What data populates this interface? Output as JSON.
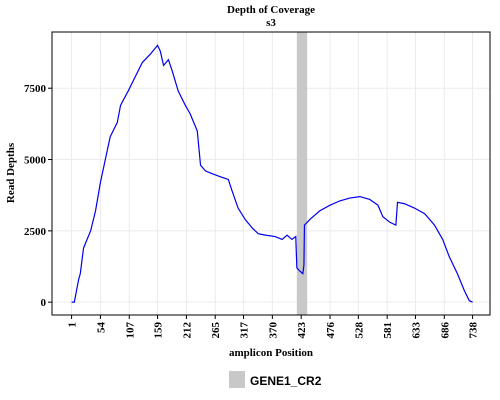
{
  "chart_data": {
    "type": "line",
    "title": "Depth of Coverage",
    "subtitle": "s3",
    "xlabel": "amplicon Position",
    "ylabel": "Read Depths",
    "x": [
      1,
      6,
      14,
      17,
      23,
      36,
      45,
      54,
      63,
      72,
      85,
      91,
      105,
      118,
      131,
      146,
      159,
      164,
      170,
      179,
      186,
      197,
      210,
      219,
      232,
      238,
      247,
      260,
      274,
      289,
      296,
      307,
      320,
      333,
      344,
      357,
      375,
      388,
      397,
      406,
      413,
      415,
      420,
      426,
      428,
      429,
      439,
      457,
      476,
      494,
      512,
      531,
      549,
      564,
      573,
      586,
      597,
      600,
      613,
      631,
      650,
      668,
      683,
      695,
      710,
      723,
      732,
      738
    ],
    "series": [
      {
        "name": "s3",
        "color": "#0000ee",
        "values": [
          0,
          0,
          800,
          1000,
          1900,
          2500,
          3200,
          4200,
          5000,
          5800,
          6300,
          6900,
          7400,
          7900,
          8400,
          8700,
          9000,
          8800,
          8300,
          8500,
          8100,
          7400,
          6900,
          6600,
          6000,
          4800,
          4600,
          4500,
          4400,
          4300,
          3900,
          3300,
          2900,
          2600,
          2400,
          2350,
          2300,
          2200,
          2350,
          2200,
          2300,
          1200,
          1100,
          1000,
          1300,
          2700,
          2900,
          3200,
          3400,
          3550,
          3650,
          3700,
          3600,
          3400,
          3000,
          2800,
          2700,
          3500,
          3450,
          3300,
          3100,
          2700,
          2200,
          1600,
          1000,
          400,
          50,
          0
        ]
      }
    ],
    "highlight": {
      "name": "GENE1_CR2",
      "xmin": 415,
      "xmax": 434,
      "color": "#c8c8c8"
    },
    "xlim": [
      -35,
      770
    ],
    "ylim": [
      -450,
      9470
    ],
    "xticks": [
      1,
      54,
      107,
      159,
      212,
      265,
      317,
      370,
      423,
      476,
      528,
      581,
      633,
      686,
      738
    ],
    "yticks": [
      0,
      2500,
      5000,
      7500
    ],
    "grid": true
  }
}
